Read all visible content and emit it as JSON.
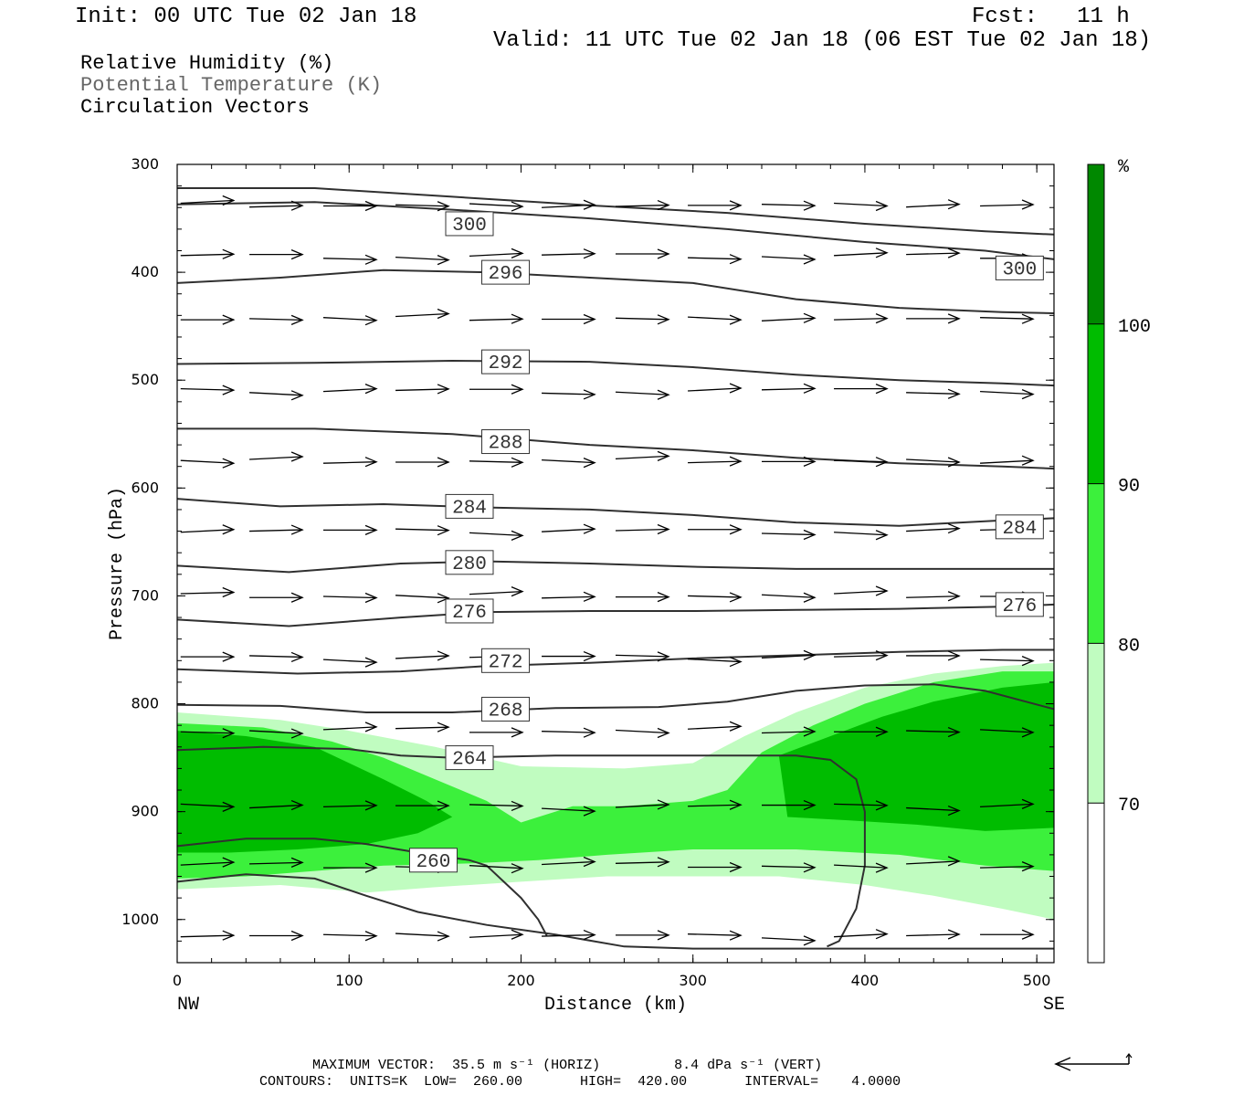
{
  "header": {
    "init": "Init: 00 UTC Tue 02 Jan 18",
    "fcst": "Fcst:   11 h",
    "valid": "Valid: 11 UTC Tue 02 Jan 18 (06 EST Tue 02 Jan 18)"
  },
  "legend": {
    "rh": "Relative Humidity (%)",
    "theta": "Potential Temperature (K)",
    "vectors": "Circulation Vectors"
  },
  "colors": {
    "rh70": "#c0fcc0",
    "rh80": "#3cf03c",
    "rh90": "#00bc00",
    "rh100": "#008800",
    "contour": "#303030",
    "vector": "#000000"
  },
  "chart_data": {
    "type": "cross-section",
    "xlabel": "Distance (km)",
    "ylabel": "Pressure (hPa)",
    "xlim": [
      0,
      510
    ],
    "ylim": [
      1040,
      300
    ],
    "x_ticks": [
      "0",
      "100",
      "200",
      "300",
      "400",
      "500"
    ],
    "y_ticks": [
      "300",
      "400",
      "500",
      "600",
      "700",
      "800",
      "900",
      "1000"
    ],
    "x_end_labels": {
      "left": "NW",
      "right": "SE"
    },
    "colorbar": {
      "unit": "%",
      "levels": [
        "70",
        "80",
        "90",
        "100"
      ],
      "colors": [
        "#ffffff",
        "#c0fcc0",
        "#3cf03c",
        "#00bc00",
        "#008800"
      ]
    },
    "rh_regions": [
      {
        "level": 70,
        "points": [
          [
            0,
            808
          ],
          [
            60,
            815
          ],
          [
            100,
            825
          ],
          [
            150,
            840
          ],
          [
            200,
            858
          ],
          [
            260,
            860
          ],
          [
            300,
            855
          ],
          [
            330,
            830
          ],
          [
            360,
            808
          ],
          [
            400,
            785
          ],
          [
            440,
            772
          ],
          [
            480,
            765
          ],
          [
            510,
            762
          ],
          [
            510,
            1000
          ],
          [
            480,
            990
          ],
          [
            440,
            978
          ],
          [
            400,
            968
          ],
          [
            350,
            960
          ],
          [
            300,
            960
          ],
          [
            250,
            960
          ],
          [
            200,
            965
          ],
          [
            150,
            970
          ],
          [
            110,
            975
          ],
          [
            60,
            968
          ],
          [
            0,
            972
          ]
        ]
      },
      {
        "level": 80,
        "points": [
          [
            0,
            818
          ],
          [
            50,
            822
          ],
          [
            90,
            835
          ],
          [
            120,
            850
          ],
          [
            150,
            870
          ],
          [
            180,
            890
          ],
          [
            200,
            910
          ],
          [
            230,
            895
          ],
          [
            260,
            895
          ],
          [
            300,
            890
          ],
          [
            320,
            880
          ],
          [
            340,
            845
          ],
          [
            370,
            820
          ],
          [
            400,
            800
          ],
          [
            440,
            780
          ],
          [
            480,
            770
          ],
          [
            510,
            770
          ],
          [
            510,
            955
          ],
          [
            470,
            950
          ],
          [
            420,
            940
          ],
          [
            360,
            935
          ],
          [
            300,
            935
          ],
          [
            250,
            940
          ],
          [
            210,
            945
          ],
          [
            170,
            948
          ],
          [
            120,
            950
          ],
          [
            80,
            955
          ],
          [
            40,
            960
          ],
          [
            0,
            962
          ]
        ]
      },
      {
        "level": 90,
        "points": [
          [
            0,
            825
          ],
          [
            40,
            830
          ],
          [
            80,
            840
          ],
          [
            100,
            855
          ],
          [
            120,
            870
          ],
          [
            145,
            890
          ],
          [
            160,
            905
          ],
          [
            140,
            920
          ],
          [
            110,
            930
          ],
          [
            70,
            935
          ],
          [
            30,
            938
          ],
          [
            0,
            938
          ]
        ]
      },
      {
        "level": 90,
        "points": [
          [
            350,
            848
          ],
          [
            380,
            830
          ],
          [
            410,
            812
          ],
          [
            440,
            798
          ],
          [
            480,
            785
          ],
          [
            510,
            780
          ],
          [
            510,
            915
          ],
          [
            470,
            918
          ],
          [
            430,
            912
          ],
          [
            390,
            908
          ],
          [
            355,
            905
          ]
        ]
      }
    ],
    "contours": [
      {
        "value": 300,
        "points": [
          [
            0,
            322
          ],
          [
            80,
            322
          ],
          [
            160,
            330
          ],
          [
            240,
            338
          ],
          [
            320,
            345
          ],
          [
            400,
            355
          ],
          [
            470,
            362
          ],
          [
            510,
            365
          ]
        ]
      },
      {
        "value": 300,
        "points": [
          [
            0,
            337
          ],
          [
            80,
            335
          ],
          [
            160,
            342
          ],
          [
            240,
            350
          ],
          [
            320,
            360
          ],
          [
            400,
            372
          ],
          [
            470,
            380
          ],
          [
            510,
            388
          ]
        ]
      },
      {
        "value": 296,
        "points": [
          [
            0,
            410
          ],
          [
            60,
            405
          ],
          [
            120,
            398
          ],
          [
            180,
            400
          ],
          [
            240,
            405
          ],
          [
            300,
            410
          ],
          [
            360,
            425
          ],
          [
            420,
            433
          ],
          [
            480,
            437
          ],
          [
            510,
            438
          ]
        ]
      },
      {
        "value": 292,
        "points": [
          [
            0,
            485
          ],
          [
            80,
            484
          ],
          [
            160,
            482
          ],
          [
            240,
            483
          ],
          [
            300,
            488
          ],
          [
            360,
            495
          ],
          [
            420,
            500
          ],
          [
            480,
            503
          ],
          [
            510,
            505
          ]
        ]
      },
      {
        "value": 288,
        "points": [
          [
            0,
            545
          ],
          [
            80,
            545
          ],
          [
            160,
            550
          ],
          [
            240,
            560
          ],
          [
            300,
            565
          ],
          [
            360,
            572
          ],
          [
            420,
            577
          ],
          [
            480,
            580
          ],
          [
            510,
            582
          ]
        ]
      },
      {
        "value": 284,
        "points": [
          [
            0,
            610
          ],
          [
            60,
            617
          ],
          [
            120,
            615
          ],
          [
            180,
            618
          ],
          [
            240,
            620
          ],
          [
            300,
            625
          ],
          [
            360,
            632
          ],
          [
            420,
            635
          ],
          [
            480,
            630
          ],
          [
            510,
            628
          ]
        ]
      },
      {
        "value": 280,
        "points": [
          [
            0,
            672
          ],
          [
            65,
            678
          ],
          [
            130,
            670
          ],
          [
            180,
            668
          ],
          [
            240,
            670
          ],
          [
            300,
            673
          ],
          [
            360,
            675
          ],
          [
            420,
            675
          ],
          [
            480,
            675
          ],
          [
            510,
            675
          ]
        ]
      },
      {
        "value": 276,
        "points": [
          [
            0,
            722
          ],
          [
            65,
            728
          ],
          [
            130,
            720
          ],
          [
            180,
            715
          ],
          [
            240,
            714
          ],
          [
            300,
            714
          ],
          [
            360,
            713
          ],
          [
            420,
            712
          ],
          [
            480,
            710
          ],
          [
            510,
            708
          ]
        ]
      },
      {
        "value": 272,
        "points": [
          [
            0,
            768
          ],
          [
            70,
            772
          ],
          [
            130,
            770
          ],
          [
            180,
            765
          ],
          [
            240,
            762
          ],
          [
            300,
            758
          ],
          [
            360,
            755
          ],
          [
            420,
            752
          ],
          [
            480,
            750
          ],
          [
            510,
            750
          ]
        ]
      },
      {
        "value": 268,
        "points": [
          [
            0,
            801
          ],
          [
            60,
            802
          ],
          [
            110,
            808
          ],
          [
            160,
            808
          ],
          [
            220,
            804
          ],
          [
            280,
            803
          ],
          [
            320,
            798
          ],
          [
            360,
            788
          ],
          [
            400,
            783
          ],
          [
            440,
            782
          ],
          [
            470,
            788
          ],
          [
            510,
            805
          ]
        ]
      },
      {
        "value": 264,
        "points": [
          [
            0,
            843
          ],
          [
            50,
            840
          ],
          [
            100,
            842
          ],
          [
            130,
            848
          ],
          [
            160,
            850
          ],
          [
            220,
            848
          ],
          [
            280,
            848
          ],
          [
            330,
            848
          ],
          [
            360,
            848
          ],
          [
            380,
            852
          ],
          [
            395,
            870
          ],
          [
            400,
            900
          ],
          [
            400,
            950
          ],
          [
            395,
            990
          ],
          [
            385,
            1020
          ],
          [
            378,
            1025
          ]
        ]
      },
      {
        "value": 260,
        "points": [
          [
            0,
            932
          ],
          [
            40,
            925
          ],
          [
            80,
            925
          ],
          [
            110,
            930
          ],
          [
            140,
            938
          ],
          [
            170,
            945
          ],
          [
            180,
            950
          ],
          [
            190,
            965
          ],
          [
            200,
            980
          ],
          [
            210,
            1000
          ],
          [
            215,
            1015
          ]
        ]
      },
      {
        "value": 260,
        "points": [
          [
            0,
            965
          ],
          [
            40,
            958
          ],
          [
            80,
            962
          ],
          [
            110,
            978
          ],
          [
            140,
            993
          ],
          [
            180,
            1005
          ],
          [
            220,
            1014
          ],
          [
            260,
            1025
          ],
          [
            300,
            1027
          ],
          [
            360,
            1027
          ],
          [
            420,
            1027
          ],
          [
            480,
            1027
          ],
          [
            510,
            1027
          ]
        ]
      }
    ],
    "contour_labels": [
      {
        "value": "300",
        "x": 170,
        "p": 355
      },
      {
        "value": "296",
        "x": 191,
        "p": 400
      },
      {
        "value": "292",
        "x": 191,
        "p": 483
      },
      {
        "value": "288",
        "x": 191,
        "p": 557
      },
      {
        "value": "284",
        "x": 170,
        "p": 617
      },
      {
        "value": "280",
        "x": 170,
        "p": 669
      },
      {
        "value": "276",
        "x": 170,
        "p": 714
      },
      {
        "value": "272",
        "x": 191,
        "p": 760
      },
      {
        "value": "268",
        "x": 191,
        "p": 805
      },
      {
        "value": "264",
        "x": 170,
        "p": 850
      },
      {
        "value": "260",
        "x": 149,
        "p": 945
      },
      {
        "value": "300",
        "x": 490,
        "p": 396
      },
      {
        "value": "284",
        "x": 490,
        "p": 636
      },
      {
        "value": "276",
        "x": 490,
        "p": 708
      }
    ],
    "vector_grid": {
      "x": [
        2,
        42,
        85,
        127,
        170,
        212,
        255,
        297,
        340,
        382,
        424,
        467,
        505
      ],
      "p": [
        338,
        385,
        443,
        510,
        575,
        640,
        700,
        757,
        825,
        895,
        950,
        1015
      ]
    }
  },
  "footer": {
    "line1": "MAXIMUM VECTOR:  35.5 m s⁻¹ (HORIZ)         8.4 dPa s⁻¹ (VERT)",
    "line2": "CONTOURS:  UNITS=K  LOW=  260.00       HIGH=  420.00       INTERVAL=    4.0000"
  }
}
